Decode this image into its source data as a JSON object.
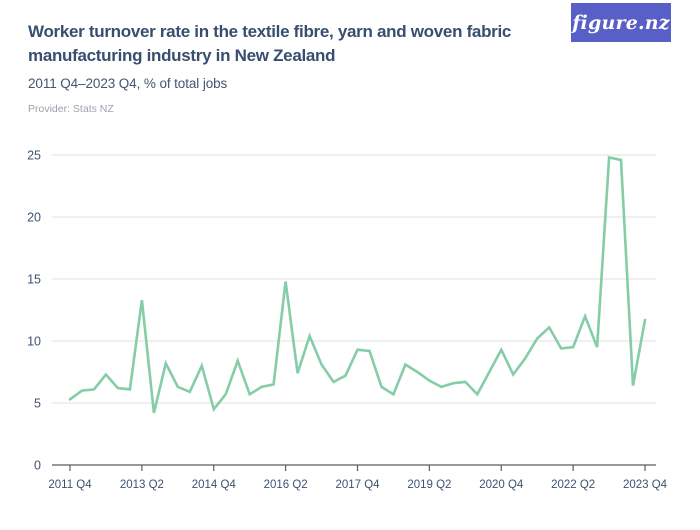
{
  "header": {
    "title": "Worker turnover rate in the textile fibre, yarn and woven fabric manufacturing industry in New Zealand",
    "subtitle": "2011 Q4–2023 Q4, % of total jobs",
    "provider": "Provider: Stats NZ"
  },
  "logo": {
    "text": "figure.nz",
    "bg_color": "#585fc7",
    "text_color": "#ffffff"
  },
  "chart_data": {
    "type": "line",
    "title": "Worker turnover rate in the textile fibre, yarn and woven fabric manufacturing industry in New Zealand",
    "ylabel": "% of total jobs",
    "xlabel": "",
    "grid": "horizontal",
    "legend": "none",
    "ylim": [
      0,
      25
    ],
    "yticks": [
      0,
      5,
      10,
      15,
      20,
      25
    ],
    "xtick_labels": [
      "2011 Q4",
      "2013 Q2",
      "2014 Q4",
      "2016 Q2",
      "2017 Q4",
      "2019 Q2",
      "2020 Q4",
      "2022 Q2",
      "2023 Q4"
    ],
    "series_name": "Worker turnover rate",
    "series_color": "#84cda6",
    "colors": {
      "grid": "#e6e6e9",
      "axis": "#585d66",
      "tick_label": "#3f5270"
    },
    "x": [
      "2011 Q4",
      "2012 Q1",
      "2012 Q2",
      "2012 Q3",
      "2012 Q4",
      "2013 Q1",
      "2013 Q2",
      "2013 Q3",
      "2013 Q4",
      "2014 Q1",
      "2014 Q2",
      "2014 Q3",
      "2014 Q4",
      "2015 Q1",
      "2015 Q2",
      "2015 Q3",
      "2015 Q4",
      "2016 Q1",
      "2016 Q2",
      "2016 Q3",
      "2016 Q4",
      "2017 Q1",
      "2017 Q2",
      "2017 Q3",
      "2017 Q4",
      "2018 Q1",
      "2018 Q2",
      "2018 Q3",
      "2018 Q4",
      "2019 Q1",
      "2019 Q2",
      "2019 Q3",
      "2019 Q4",
      "2020 Q1",
      "2020 Q2",
      "2020 Q3",
      "2020 Q4",
      "2021 Q1",
      "2021 Q2",
      "2021 Q3",
      "2021 Q4",
      "2022 Q1",
      "2022 Q2",
      "2022 Q3",
      "2022 Q4",
      "2023 Q1",
      "2023 Q2",
      "2023 Q3",
      "2023 Q4"
    ],
    "values": [
      5.3,
      6.0,
      6.1,
      7.3,
      6.2,
      6.1,
      13.3,
      4.2,
      8.2,
      6.3,
      5.9,
      8.0,
      4.5,
      5.7,
      8.4,
      5.7,
      6.3,
      6.5,
      14.8,
      7.4,
      10.4,
      8.1,
      6.7,
      7.2,
      9.3,
      9.2,
      6.3,
      5.7,
      8.1,
      7.5,
      6.8,
      6.3,
      6.6,
      6.7,
      5.7,
      7.5,
      9.3,
      7.3,
      8.6,
      10.2,
      11.1,
      9.4,
      9.5,
      12.0,
      9.5,
      24.8,
      24.6,
      6.4,
      11.7
    ]
  }
}
